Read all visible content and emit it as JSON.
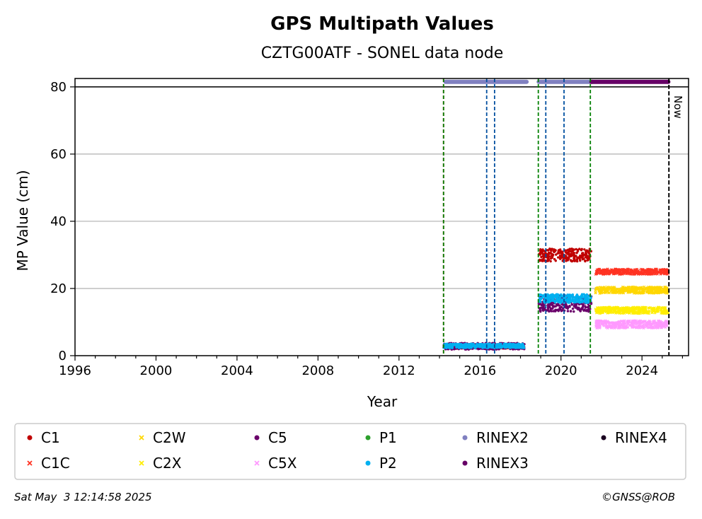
{
  "chart_data": {
    "type": "scatter",
    "title": "GPS Multipath Values",
    "subtitle": "CZTG00ATF - SONEL data node",
    "xlabel": "Year",
    "ylabel": "MP Value (cm)",
    "xlim": [
      1996,
      2026.3
    ],
    "ylim": [
      0,
      82.5
    ],
    "xticks": [
      1996,
      2000,
      2004,
      2008,
      2012,
      2016,
      2020,
      2024
    ],
    "yticks": [
      0,
      20,
      40,
      60,
      80
    ],
    "grid": "y",
    "now_label": "Now",
    "now_x": 2025.33,
    "reference_line_y": 80,
    "legend_position": "bottom",
    "vlines": [
      {
        "x": 2014.2,
        "color": "#dd0000"
      },
      {
        "x": 2014.2,
        "color": "#008000"
      },
      {
        "x": 2016.33,
        "color": "#0050a0"
      },
      {
        "x": 2016.72,
        "color": "#0050a0"
      },
      {
        "x": 2018.88,
        "color": "#008000"
      },
      {
        "x": 2019.25,
        "color": "#0050a0"
      },
      {
        "x": 2020.15,
        "color": "#0050a0"
      },
      {
        "x": 2021.45,
        "color": "#008000"
      }
    ],
    "series": [
      {
        "name": "C1",
        "color": "#c00000",
        "marker": "dot",
        "segments": [
          [
            2014.2,
            2018.2,
            2.6,
            0.3
          ],
          [
            2018.9,
            2021.5,
            30.0,
            1.2
          ]
        ]
      },
      {
        "name": "C1C",
        "color": "#ff3322",
        "marker": "x",
        "segments": [
          [
            2021.7,
            2025.3,
            25.0,
            0.5
          ]
        ]
      },
      {
        "name": "C2W",
        "color": "#ffd700",
        "marker": "x",
        "segments": [
          [
            2021.7,
            2025.3,
            19.5,
            0.6
          ]
        ]
      },
      {
        "name": "C2X",
        "color": "#ffee00",
        "marker": "x",
        "segments": [
          [
            2021.7,
            2025.3,
            13.5,
            0.6
          ]
        ]
      },
      {
        "name": "C5",
        "color": "#6a006a",
        "marker": "dot",
        "segments": [
          [
            2014.2,
            2018.2,
            2.8,
            0.6
          ],
          [
            2018.9,
            2021.5,
            15.5,
            1.5
          ]
        ]
      },
      {
        "name": "C5X",
        "color": "#ff99ff",
        "marker": "x",
        "segments": [
          [
            2021.7,
            2025.3,
            9.3,
            0.7
          ]
        ]
      },
      {
        "name": "P1",
        "color": "#2ca02c",
        "marker": "dot",
        "segments": []
      },
      {
        "name": "P2",
        "color": "#00b0f0",
        "marker": "dot",
        "segments": [
          [
            2014.2,
            2018.2,
            2.9,
            0.4
          ],
          [
            2018.9,
            2021.5,
            17.0,
            0.8
          ]
        ]
      },
      {
        "name": "RINEX2",
        "color": "#8080c0",
        "marker": "dot",
        "segments": [
          [
            2014.3,
            2018.3,
            81.5,
            0
          ],
          [
            2018.9,
            2021.55,
            81.5,
            0
          ]
        ]
      },
      {
        "name": "RINEX3",
        "color": "#660066",
        "marker": "dot",
        "segments": [
          [
            2021.5,
            2025.3,
            81.5,
            0
          ]
        ]
      },
      {
        "name": "RINEX4",
        "color": "#1a0020",
        "marker": "dot",
        "segments": []
      }
    ]
  },
  "footer": {
    "timestamp": "Sat May  3 12:14:58 2025",
    "credit": "©GNSS@ROB"
  }
}
